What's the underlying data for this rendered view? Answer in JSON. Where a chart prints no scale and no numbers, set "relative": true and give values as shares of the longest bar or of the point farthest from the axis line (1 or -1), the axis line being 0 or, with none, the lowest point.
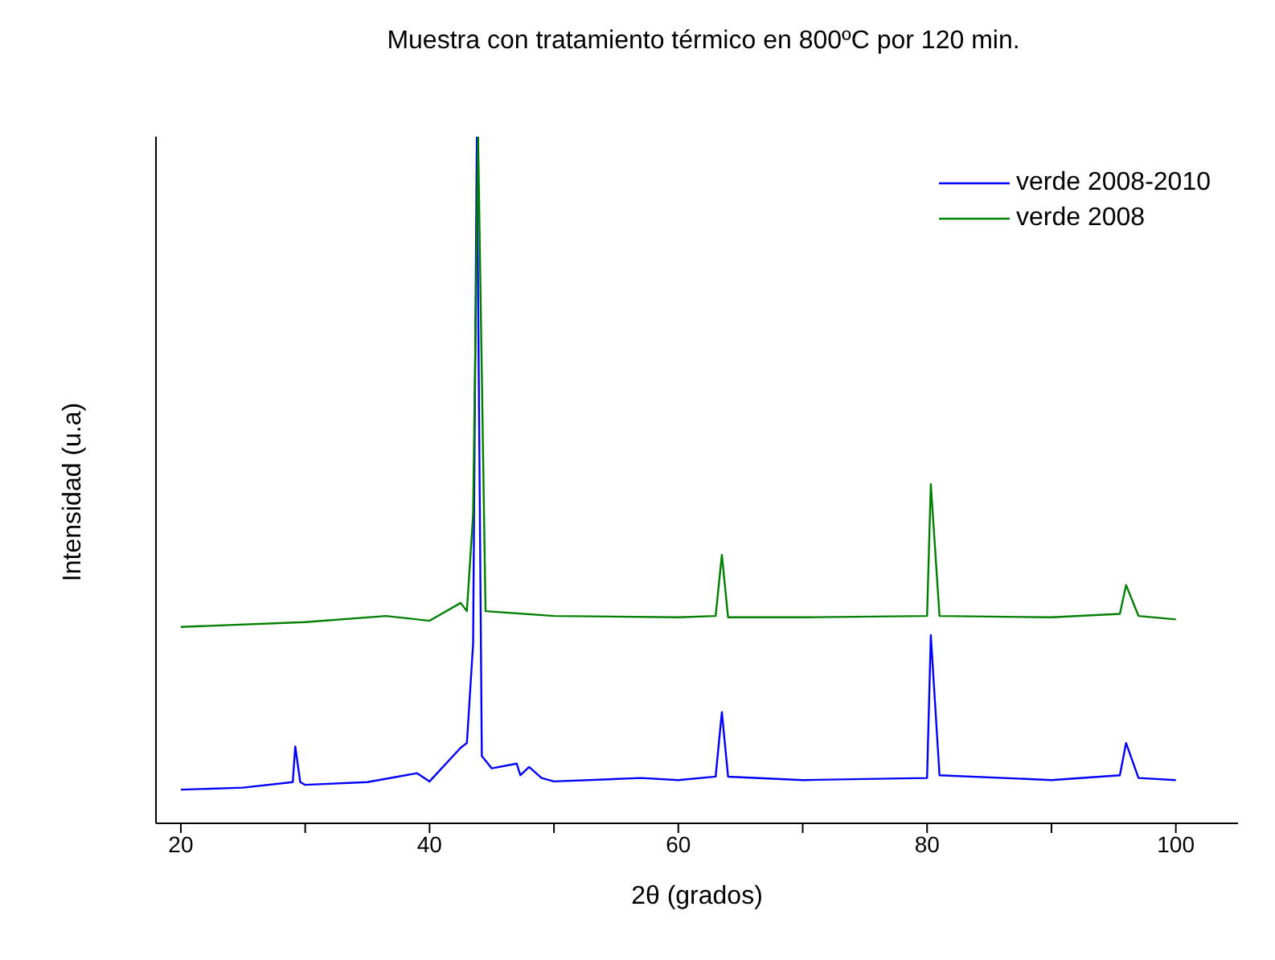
{
  "chart_data": {
    "type": "line",
    "title": "Muestra con tratamiento térmico en 800ºC por 120 min.",
    "xlabel": "2θ (grados)",
    "ylabel": "Intensidad (u.a)",
    "relative": true,
    "xlim": [
      18,
      105
    ],
    "xticks": [
      20,
      {
        "value": 30,
        "label": null
      },
      40,
      {
        "value": 50,
        "label": null
      },
      60,
      {
        "value": 70,
        "label": null
      },
      80,
      {
        "value": 90,
        "label": null
      },
      100
    ],
    "grid": false,
    "legend": "top right",
    "marker": "none",
    "line_style": "solid",
    "series": [
      {
        "name": "verde 2008-2010",
        "color": "#0000ff",
        "x": [
          20,
          25,
          29,
          29.2,
          29.6,
          30,
          35,
          39,
          40,
          42.5,
          43,
          43.5,
          43.8,
          44.2,
          45,
          47,
          47.3,
          48,
          49,
          50,
          57,
          60,
          63,
          63.5,
          64,
          70,
          80,
          80.3,
          81,
          90,
          95.5,
          96,
          97,
          100
        ],
        "values": [
          0.049,
          0.052,
          0.06,
          0.112,
          0.06,
          0.056,
          0.06,
          0.073,
          0.061,
          0.11,
          0.117,
          0.262,
          1,
          0.098,
          0.08,
          0.087,
          0.07,
          0.082,
          0.066,
          0.061,
          0.066,
          0.063,
          0.068,
          0.162,
          0.068,
          0.063,
          0.066,
          0.274,
          0.07,
          0.063,
          0.07,
          0.117,
          0.066,
          0.063
        ]
      },
      {
        "name": "verde 2008",
        "color": "#008000",
        "x": [
          20,
          30,
          36.5,
          40,
          42.5,
          43,
          43.5,
          43.9,
          44.5,
          50,
          60,
          63,
          63.5,
          64,
          70,
          80,
          80.3,
          81,
          90,
          95.5,
          96,
          97,
          100
        ],
        "values": [
          0.286,
          0.293,
          0.302,
          0.295,
          0.321,
          0.309,
          0.45,
          1,
          0.309,
          0.302,
          0.3,
          0.302,
          0.391,
          0.3,
          0.3,
          0.302,
          0.494,
          0.302,
          0.3,
          0.305,
          0.347,
          0.302,
          0.297
        ]
      }
    ]
  }
}
